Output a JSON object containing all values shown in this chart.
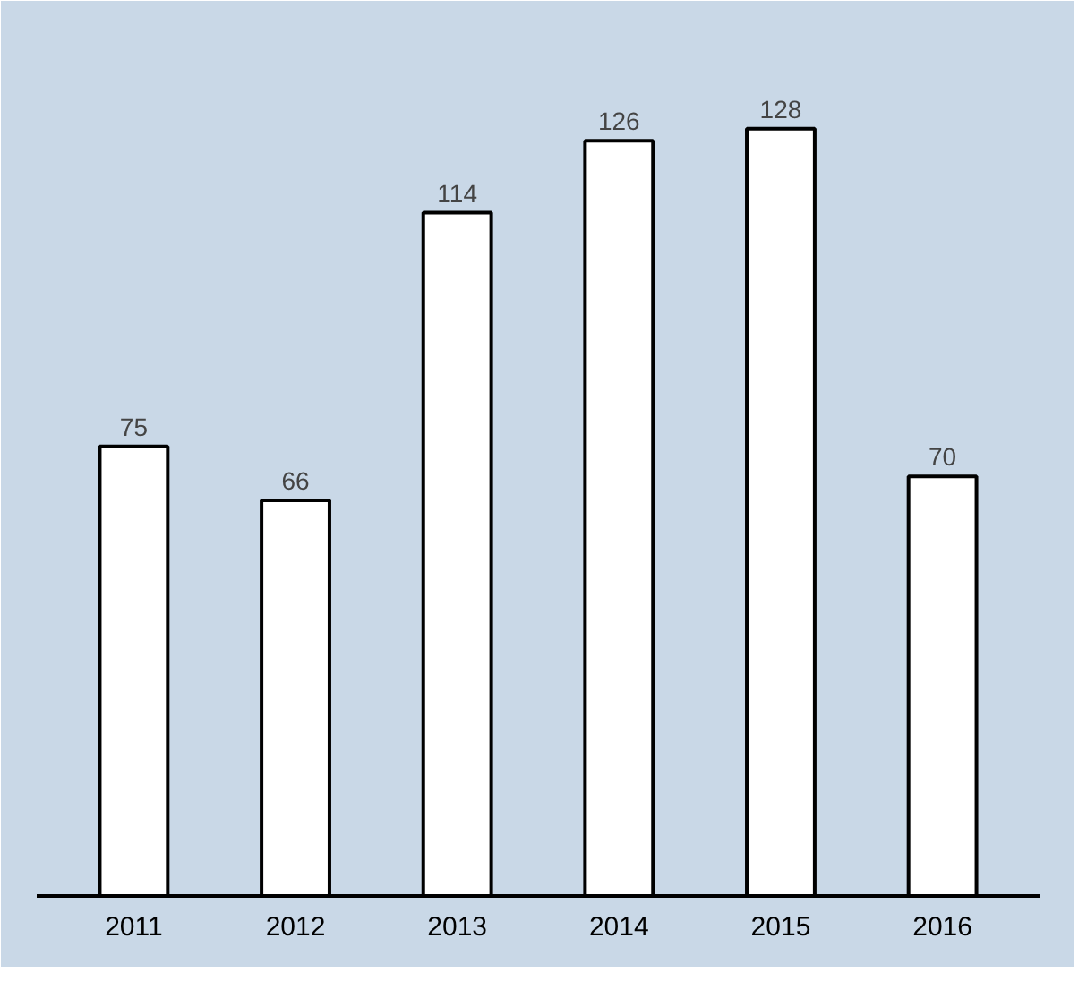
{
  "chart_data": {
    "type": "bar",
    "categories": [
      "2011",
      "2012",
      "2013",
      "2014",
      "2015",
      "2016"
    ],
    "values": [
      75,
      66,
      114,
      126,
      128,
      70
    ],
    "color": "#ffffff",
    "data_labels": true
  }
}
